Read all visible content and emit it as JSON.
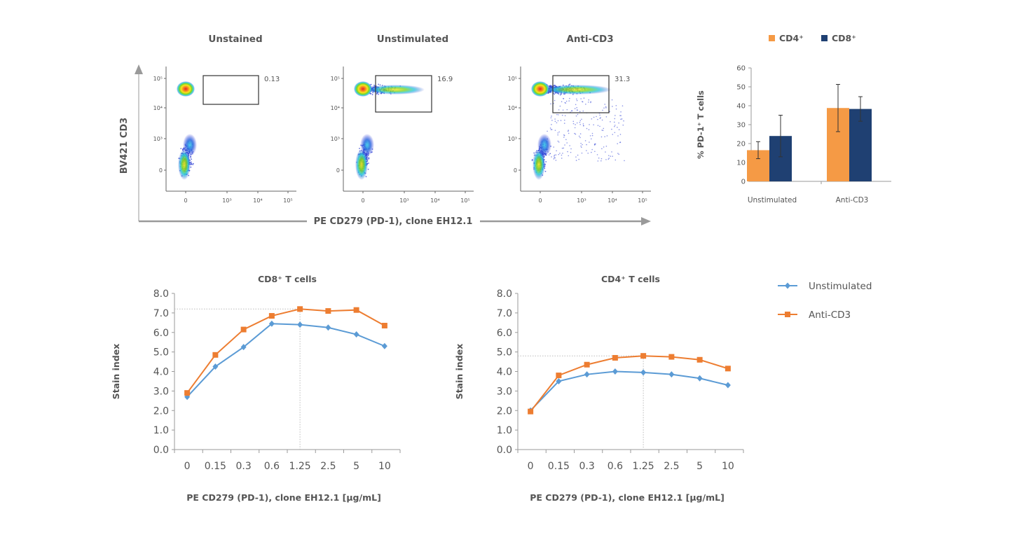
{
  "flow_panels": {
    "y_axis_label": "BV421 CD3",
    "x_axis_label": "PE CD279 (PD-1), clone EH12.1",
    "y_ticks": [
      "10⁵",
      "10⁴",
      "10³",
      "0"
    ],
    "x_ticks": [
      "0",
      "10³",
      "10⁴",
      "10⁵"
    ],
    "panels": [
      {
        "title": "Unstained",
        "gate_value": "0.13"
      },
      {
        "title": "Unstimulated",
        "gate_value": "16.9"
      },
      {
        "title": "Anti-CD3",
        "gate_value": "31.3"
      }
    ]
  },
  "chart_data": [
    {
      "type": "bar",
      "title": "",
      "ylabel": "% PD-1⁺ T cells",
      "xlabel": "",
      "categories": [
        "Unstimulated",
        "Anti-CD3"
      ],
      "series": [
        {
          "name": "CD4⁺",
          "color": "#f59a45",
          "values": [
            16.5,
            38.8
          ],
          "error": [
            4.5,
            12.5
          ]
        },
        {
          "name": "CD8⁺",
          "color": "#1f4072",
          "values": [
            24,
            38.3
          ],
          "error": [
            11,
            6.5
          ]
        }
      ],
      "ylim": [
        0,
        60
      ],
      "yticks": [
        "0",
        "10",
        "20",
        "30",
        "40",
        "50",
        "60"
      ],
      "legend": "top"
    },
    {
      "type": "line",
      "title": "CD8⁺ T cells",
      "ylabel": "Stain index",
      "xlabel": "PE CD279 (PD-1), clone EH12.1 [µg/mL]",
      "categories": [
        "0",
        "0.15",
        "0.3",
        "0.6",
        "1.25",
        "2.5",
        "5",
        "10"
      ],
      "series": [
        {
          "name": "Unstimulated",
          "color": "#5b9bd5",
          "marker": "diamond",
          "values": [
            2.7,
            4.25,
            5.25,
            6.45,
            6.4,
            6.25,
            5.9,
            5.3
          ]
        },
        {
          "name": "Anti-CD3",
          "color": "#ed7d31",
          "marker": "square",
          "values": [
            2.9,
            4.85,
            6.15,
            6.85,
            7.2,
            7.1,
            7.15,
            6.35
          ]
        }
      ],
      "ylim": [
        0,
        8
      ],
      "yticks": [
        "0.0",
        "1.0",
        "2.0",
        "3.0",
        "4.0",
        "5.0",
        "6.0",
        "7.0",
        "8.0"
      ],
      "reference_lines": {
        "x_index": 4,
        "y_value": 7.2
      }
    },
    {
      "type": "line",
      "title": "CD4⁺ T cells",
      "ylabel": "Stain index",
      "xlabel": "PE CD279 (PD-1), clone EH12.1 [µg/mL]",
      "categories": [
        "0",
        "0.15",
        "0.3",
        "0.6",
        "1.25",
        "2.5",
        "5",
        "10"
      ],
      "series": [
        {
          "name": "Unstimulated",
          "color": "#5b9bd5",
          "marker": "diamond",
          "values": [
            2.0,
            3.5,
            3.85,
            4.0,
            3.95,
            3.85,
            3.65,
            3.3
          ]
        },
        {
          "name": "Anti-CD3",
          "color": "#ed7d31",
          "marker": "square",
          "values": [
            1.95,
            3.8,
            4.35,
            4.7,
            4.8,
            4.75,
            4.6,
            4.15
          ]
        }
      ],
      "ylim": [
        0,
        8
      ],
      "yticks": [
        "0.0",
        "1.0",
        "2.0",
        "3.0",
        "4.0",
        "5.0",
        "6.0",
        "7.0",
        "8.0"
      ],
      "reference_lines": {
        "x_index": 4,
        "y_value": 4.8
      }
    }
  ],
  "line_legend": [
    {
      "name": "Unstimulated",
      "color": "#5b9bd5",
      "marker": "diamond"
    },
    {
      "name": "Anti-CD3",
      "color": "#ed7d31",
      "marker": "square"
    }
  ]
}
